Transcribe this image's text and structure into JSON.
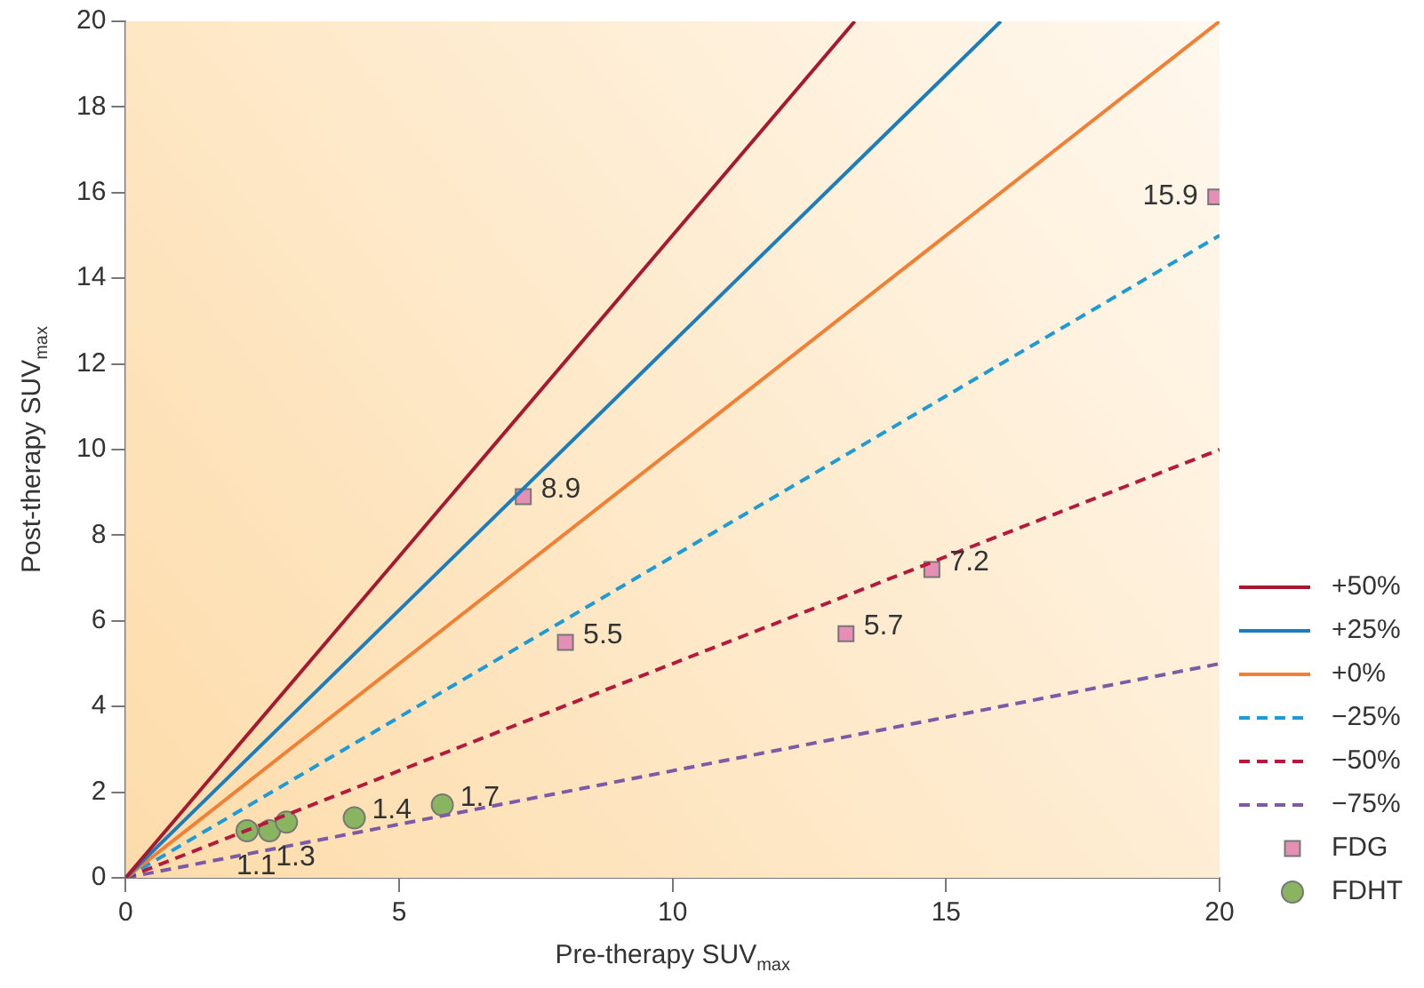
{
  "chart_data": {
    "type": "line",
    "xlabel": "Pre-therapy SUV$_{max}$",
    "ylabel": "Post-therapy SUV$_{max}$",
    "xlim": [
      0,
      20
    ],
    "xticks": [
      0,
      5,
      10,
      15,
      20
    ],
    "ylim": [
      0,
      20
    ],
    "yticks": [
      0,
      2,
      4,
      6,
      8,
      10,
      12,
      14,
      16,
      18,
      20
    ],
    "legend": "right",
    "series": [
      {
        "name": "+50%",
        "type": "line",
        "color": "#a6192e",
        "line_style": "solid",
        "marker": "none",
        "x": [
          0,
          13.33
        ],
        "values": [
          0,
          20
        ]
      },
      {
        "name": "+25%",
        "type": "line",
        "color": "#1b7dbf",
        "line_style": "solid",
        "marker": "none",
        "x": [
          0,
          16
        ],
        "values": [
          0,
          20
        ]
      },
      {
        "name": "+0%",
        "type": "line",
        "color": "#f47f32",
        "line_style": "solid",
        "marker": "none",
        "x": [
          0,
          20
        ],
        "values": [
          0,
          20
        ]
      },
      {
        "name": "−25%",
        "type": "line",
        "color": "#1e9ad6",
        "line_style": "dashed",
        "marker": "none",
        "x": [
          0,
          20
        ],
        "values": [
          0,
          15
        ]
      },
      {
        "name": "−50%",
        "type": "line",
        "color": "#b5193b",
        "line_style": "dashed",
        "marker": "none",
        "x": [
          0,
          20
        ],
        "values": [
          0,
          10
        ]
      },
      {
        "name": "−75%",
        "type": "line",
        "color": "#7d5aa6",
        "line_style": "dashed",
        "marker": "none",
        "x": [
          0,
          20
        ],
        "values": [
          0,
          5
        ]
      },
      {
        "name": "FDG",
        "type": "scatter",
        "color": "#e58fb5",
        "marker": "square",
        "x": [
          7.27,
          8.04,
          13.17,
          14.74,
          19.93
        ],
        "values": [
          8.9,
          5.5,
          5.7,
          7.2,
          15.9
        ],
        "value_labels": [
          "8.9",
          "5.5",
          "5.7",
          "7.2",
          "15.9"
        ]
      },
      {
        "name": "FDHT",
        "type": "scatter",
        "color": "#8ab560",
        "marker": "circle",
        "x": [
          2.22,
          2.63,
          2.94,
          4.18,
          5.79
        ],
        "values": [
          1.1,
          1.1,
          1.3,
          1.4,
          1.7
        ],
        "value_labels": [
          "1.1",
          null,
          "1.3",
          "1.4",
          "1.7"
        ]
      }
    ]
  }
}
